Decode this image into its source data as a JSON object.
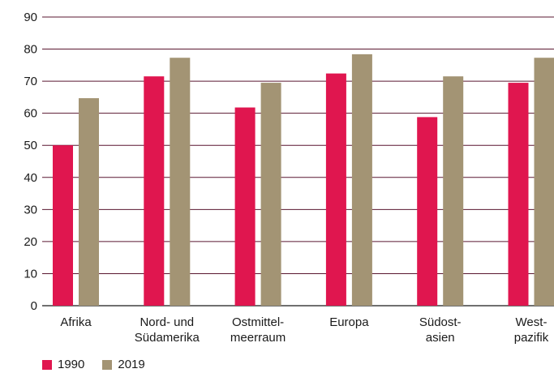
{
  "chart_data": {
    "type": "bar",
    "categories": [
      [
        "Afrika"
      ],
      [
        "Nord- und",
        "Südamerika"
      ],
      [
        "Ostmittel-",
        "meerraum"
      ],
      [
        "Europa"
      ],
      [
        "Südost-",
        "asien"
      ],
      [
        "West-",
        "pazifik"
      ]
    ],
    "series": [
      {
        "name": "1990",
        "color": "#e0164f",
        "values": [
          50,
          71.5,
          61.8,
          72.4,
          58.8,
          69.5
        ]
      },
      {
        "name": "2019",
        "color": "#a39474",
        "values": [
          64.7,
          77.3,
          69.5,
          78.4,
          71.5,
          77.3
        ]
      }
    ],
    "ylim": [
      0,
      90
    ],
    "yticks": [
      "0",
      "10",
      "20",
      "30",
      "40",
      "50",
      "60",
      "70",
      "80",
      "90"
    ],
    "grid": true,
    "gridColor": "#5a1730",
    "legend_position": "bottom-left"
  }
}
